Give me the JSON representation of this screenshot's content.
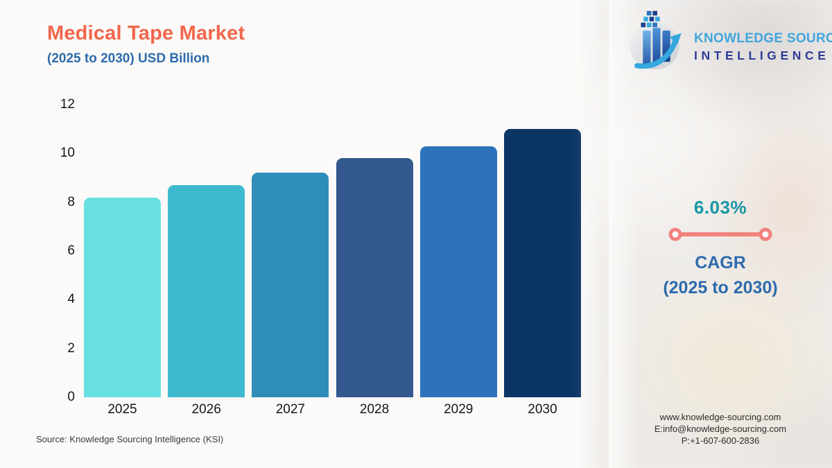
{
  "header": {
    "title": "Medical Tape Market",
    "subtitle": "(2025 to 2030) USD Billion"
  },
  "logo": {
    "icon": "globe-bar-chart-arrow-icon",
    "line1": "KNOWLEDGE SOURCING",
    "line2": "INTELLIGENCE"
  },
  "chart_data": {
    "type": "bar",
    "title": "Medical Tape Market (2025 to 2030) USD Billion",
    "categories": [
      "2025",
      "2026",
      "2027",
      "2028",
      "2029",
      "2030"
    ],
    "values": [
      8.2,
      8.7,
      9.2,
      9.8,
      10.3,
      11.0
    ],
    "bar_colors": [
      "#68E0E2",
      "#3FB9CE",
      "#2F8DB9",
      "#33598F",
      "#2C73BC",
      "#0B3565"
    ],
    "xlabel": "",
    "ylabel": "",
    "ylim": [
      0,
      12
    ],
    "yticks": [
      0,
      2,
      4,
      6,
      8,
      10,
      12
    ],
    "grid": false,
    "legend": "none"
  },
  "cagr": {
    "value": "6.03%",
    "label_line1": "CAGR",
    "label_line2": "(2025 to 2030)",
    "value_color": "#1796A4",
    "connector_color": "#F1827C",
    "label_color": "#2D6BAD"
  },
  "source": {
    "text": "Source: Knowledge Sourcing Intelligence (KSI)"
  },
  "contact": {
    "website": "www.knowledge-sourcing.com",
    "email": "E:info@knowledge-sourcing.com",
    "phone": "P:+1-607-600-2836"
  },
  "colors": {
    "title": "#F2664B",
    "subtitle": "#2D6BAD",
    "background": "#FBFAF8",
    "axis_text": "#161616",
    "logo_line1": "#41A5DC",
    "logo_line2": "#2F3B96"
  }
}
